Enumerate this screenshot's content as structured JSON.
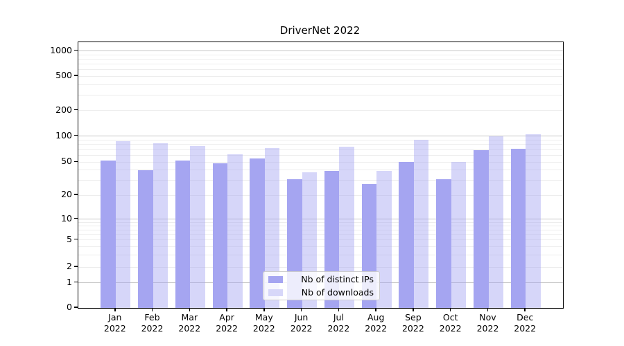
{
  "title": "DriverNet 2022",
  "colors": {
    "ips_bar": "#a5a5f1",
    "downloads_bar": "#d7d7f9",
    "downloads_bar_rgba": "rgba(165,165,241,0.45)",
    "grid_major": "#c4c4c4",
    "grid_minor": "#ededed",
    "spine": "#000000"
  },
  "legend": {
    "items": [
      {
        "label": "Nb of distinct IPs",
        "color": "#a5a5f1"
      },
      {
        "label": "Nb of downloads",
        "color": "#d7d7f9"
      }
    ]
  },
  "chart_data": {
    "type": "bar",
    "title": "DriverNet 2022",
    "categories": [
      "Jan",
      "Feb",
      "Mar",
      "Apr",
      "May",
      "Jun",
      "Jul",
      "Aug",
      "Sep",
      "Oct",
      "Nov",
      "Dec"
    ],
    "category_year": "2022",
    "series": [
      {
        "name": "Nb of distinct IPs",
        "color": "#a5a5f1",
        "values": [
          52,
          40,
          52,
          48,
          55,
          31,
          39,
          27,
          50,
          31,
          69,
          71
        ]
      },
      {
        "name": "Nb of downloads",
        "color": "#d7d7f9",
        "values": [
          87,
          83,
          77,
          62,
          73,
          38,
          76,
          39,
          91,
          50,
          100,
          105
        ]
      }
    ],
    "xlabel": "",
    "ylabel": "",
    "yscale": "symlog",
    "yticks": [
      0,
      1,
      2,
      5,
      10,
      20,
      50,
      100,
      200,
      500,
      1000
    ],
    "ylim": [
      0,
      1150
    ],
    "grid": "on",
    "legend_position": "lower center"
  }
}
